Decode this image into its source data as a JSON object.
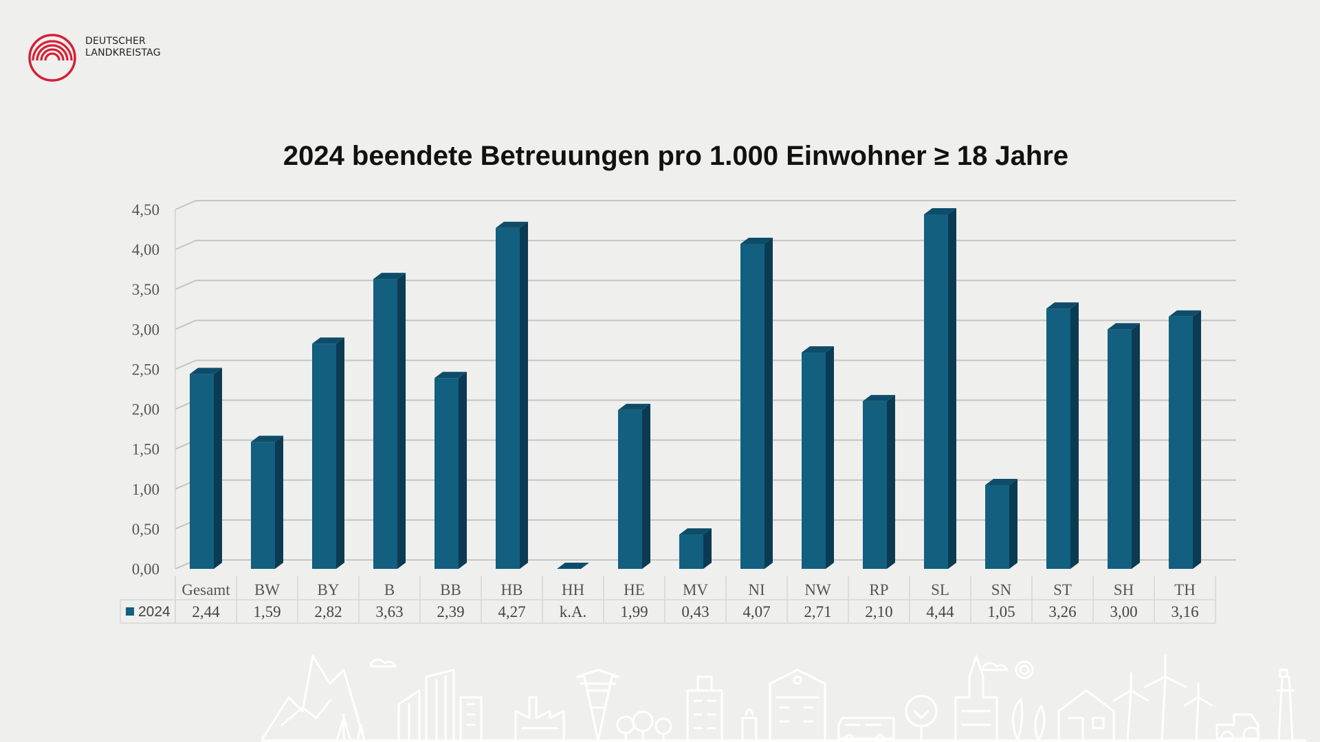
{
  "logo": {
    "line1": "DEUTSCHER",
    "line2": "LANDKREISTAG",
    "color": "#d61f36"
  },
  "chart_data": {
    "type": "bar",
    "title": "2024 beendete Betreuungen pro 1.000 Einwohner ≥ 18 Jahre",
    "categories": [
      "Gesamt",
      "BW",
      "BY",
      "B",
      "BB",
      "HB",
      "HH",
      "HE",
      "MV",
      "NI",
      "NW",
      "RP",
      "SL",
      "SN",
      "ST",
      "SH",
      "TH"
    ],
    "series": [
      {
        "name": "2024",
        "values": [
          2.44,
          1.59,
          2.82,
          3.63,
          2.39,
          4.27,
          0,
          1.99,
          0.43,
          4.07,
          2.71,
          2.1,
          4.44,
          1.05,
          3.26,
          3.0,
          3.16
        ],
        "labels": [
          "2,44",
          "1,59",
          "2,82",
          "3,63",
          "2,39",
          "4,27",
          "k.A.",
          "1,99",
          "0,43",
          "4,07",
          "2,71",
          "2,10",
          "4,44",
          "1,05",
          "3,26",
          "3,00",
          "3,16"
        ],
        "color": "#135f80"
      }
    ],
    "ylim": [
      0,
      4.5
    ],
    "yticks": [
      "0,00",
      "0,50",
      "1,00",
      "1,50",
      "2,00",
      "2,50",
      "3,00",
      "3,50",
      "4,00",
      "4,50"
    ],
    "grid": true,
    "data_table": true,
    "style": "3d"
  }
}
